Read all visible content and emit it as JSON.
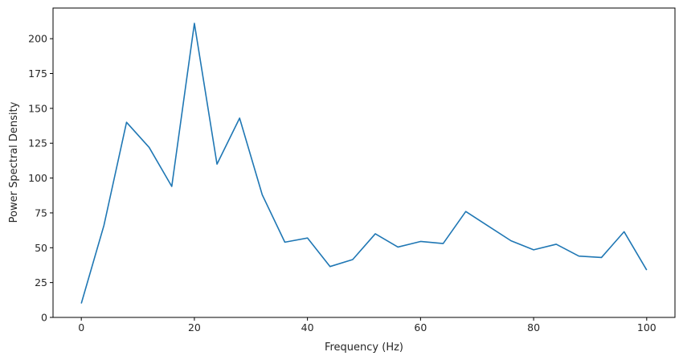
{
  "chart_data": {
    "type": "line",
    "title": "",
    "xlabel": "Frequency (Hz)",
    "ylabel": "Power Spectral Density",
    "xlim": [
      -5,
      105
    ],
    "ylim": [
      0,
      222
    ],
    "xticks": [
      0,
      20,
      40,
      60,
      80,
      100
    ],
    "yticks": [
      0,
      25,
      50,
      75,
      100,
      125,
      150,
      175,
      200
    ],
    "grid": false,
    "line_color": "#1f77b4",
    "series": [
      {
        "x": [
          0,
          4,
          8,
          12,
          16,
          20,
          24,
          28,
          32,
          36,
          40,
          44,
          48,
          52,
          56,
          60,
          64,
          68,
          72,
          76,
          80,
          84,
          88,
          92,
          96,
          100
        ],
        "values": [
          10,
          66,
          140,
          122,
          94,
          211,
          110,
          143,
          88,
          54,
          57,
          36.5,
          41.5,
          60,
          50.5,
          54.5,
          53,
          76,
          65.5,
          55,
          48.5,
          52.5,
          44,
          43,
          61.5,
          34
        ]
      }
    ]
  }
}
